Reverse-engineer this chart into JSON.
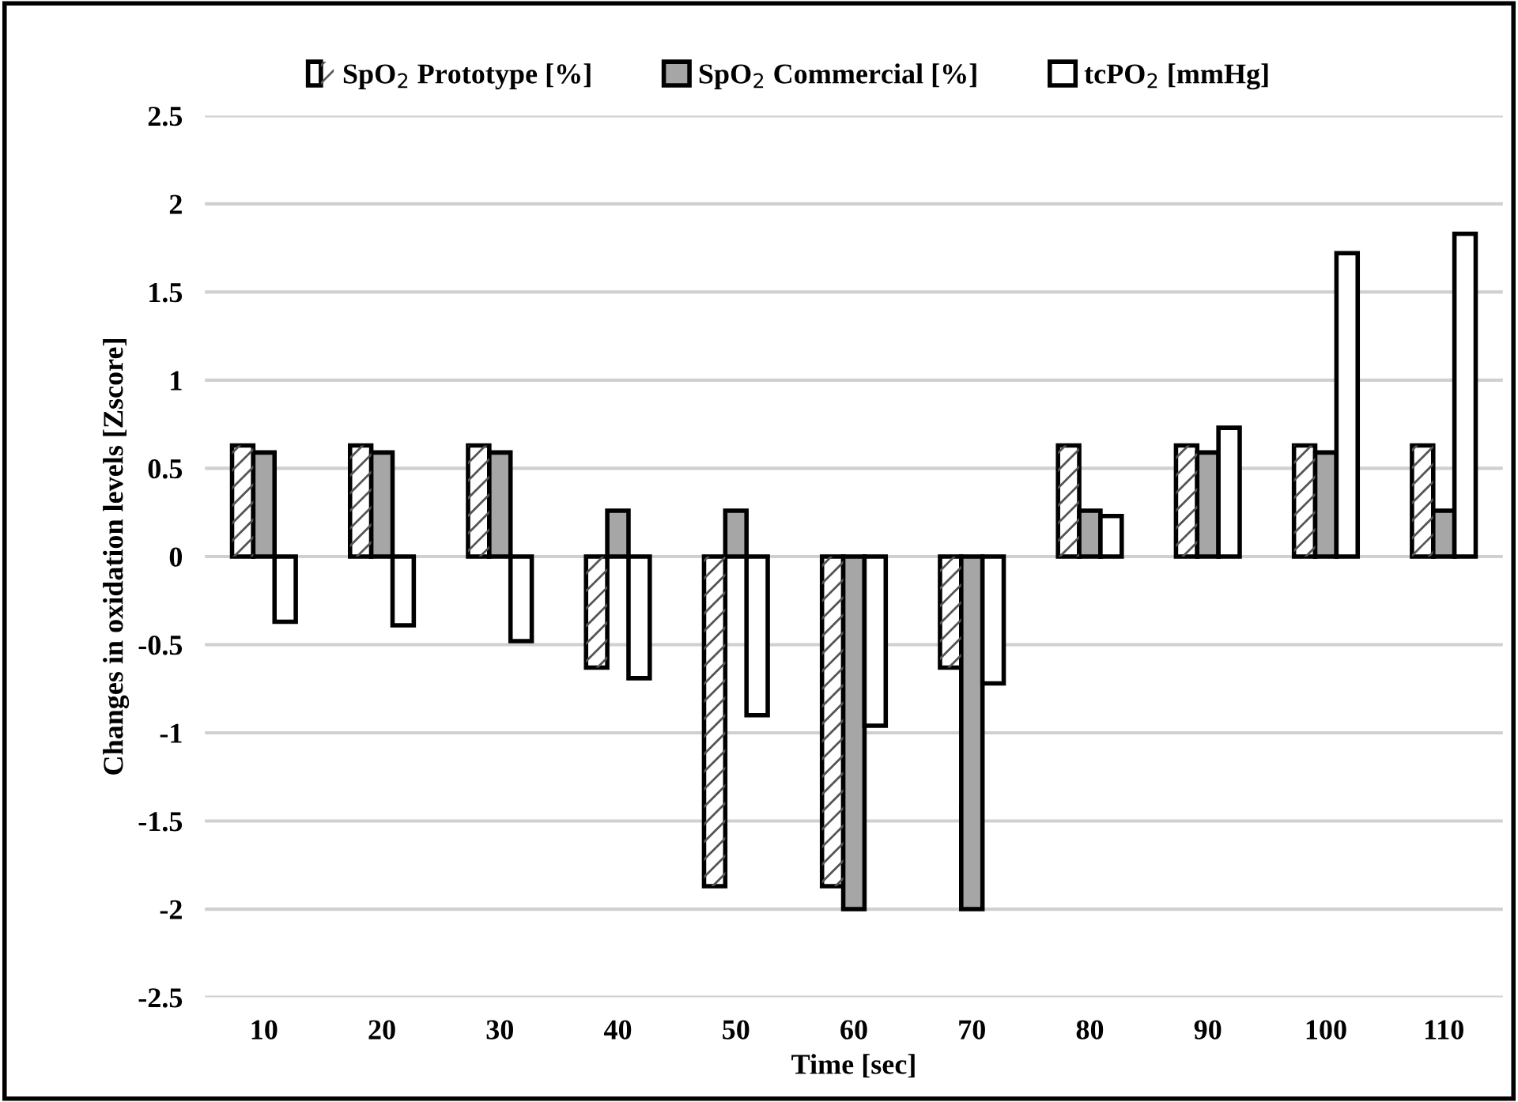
{
  "chart_data": {
    "type": "bar",
    "xlabel": "Time [sec]",
    "ylabel": "Changes in oxidation levels [Zscore]",
    "categories": [
      "10",
      "20",
      "30",
      "40",
      "50",
      "60",
      "70",
      "80",
      "90",
      "100",
      "110"
    ],
    "series": [
      {
        "name": "SpO$_{2}$ Prototype [%]",
        "color": "#ffffff",
        "values": [
          0.63,
          0.63,
          0.63,
          -0.63,
          -1.87,
          -1.87,
          -0.63,
          0.63,
          0.63,
          0.63,
          0.63
        ]
      },
      {
        "name": "SpO$_{2}$ Commercial [%]",
        "color": "#a6a6a6",
        "values": [
          0.59,
          0.59,
          0.59,
          0.26,
          0.26,
          -2.0,
          -2.0,
          0.26,
          0.59,
          0.59,
          0.26
        ]
      },
      {
        "name": "tcPO$_{2}$ [mmHg]",
        "color": "#ffffff",
        "values": [
          -0.37,
          -0.39,
          -0.48,
          -0.69,
          -0.9,
          -0.96,
          -0.72,
          0.23,
          0.73,
          1.72,
          1.83
        ]
      }
    ],
    "ylim": [
      -2.5,
      2.5
    ],
    "yticks": [
      2.5,
      2,
      1.5,
      1,
      0.5,
      0,
      -0.5,
      -1,
      -1.5,
      -2,
      -2.5
    ],
    "grid": "y",
    "legend": "top"
  }
}
